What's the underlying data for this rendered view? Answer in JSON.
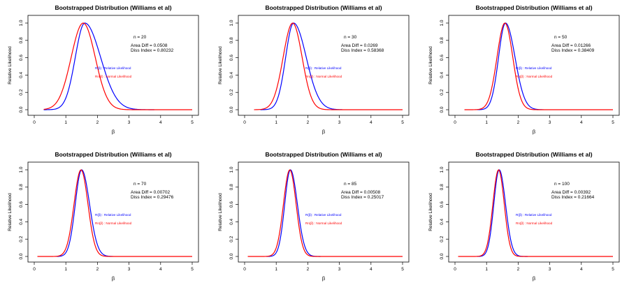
{
  "chart_data": [
    {
      "type": "line",
      "title": "Bootstrapped Distribution (Williams et al)",
      "xlabel": "β",
      "ylabel": "Relative Likelihood",
      "xlim": [
        0,
        5
      ],
      "ylim": [
        0,
        1
      ],
      "xticks": [
        "0",
        "1",
        "2",
        "3",
        "4",
        "5"
      ],
      "yticks": [
        "0.0",
        "0.2",
        "0.4",
        "0.6",
        "0.8",
        "1.0"
      ],
      "grid": false,
      "legend_position": "center-right",
      "n_label": "n = 20",
      "area_diff": "Area Diff =  0.0508",
      "diss_index": "Diss Index =  0.80232",
      "series": [
        {
          "name": "R(β) : Relative Likelihood",
          "color": "#0000ff",
          "x": [
            0.3,
            1.6,
            3.8
          ],
          "mode": 1.6,
          "sd_left": 0.3,
          "sd_right": 0.5
        },
        {
          "name": "Rn(β) : Normal Likelihood",
          "color": "#ff0000",
          "x": [
            0.3,
            1.6,
            5.0
          ],
          "mode": 1.55,
          "sd_left": 0.38,
          "sd_right": 0.38
        }
      ]
    },
    {
      "type": "line",
      "title": "Bootstrapped Distribution (Williams et al)",
      "xlabel": "β",
      "ylabel": "Relative Likelihood",
      "xlim": [
        0,
        5
      ],
      "ylim": [
        0,
        1
      ],
      "xticks": [
        "0",
        "1",
        "2",
        "3",
        "4",
        "5"
      ],
      "yticks": [
        "0.0",
        "0.2",
        "0.4",
        "0.6",
        "0.8",
        "1.0"
      ],
      "grid": false,
      "legend_position": "center-right",
      "n_label": "n = 30",
      "area_diff": "Area Diff =  0.0269",
      "diss_index": "Diss Index =  0.58368",
      "series": [
        {
          "name": "R(β) : Relative Likelihood",
          "color": "#0000ff",
          "x": [
            0.5,
            1.55,
            3.1
          ],
          "mode": 1.55,
          "sd_left": 0.25,
          "sd_right": 0.4
        },
        {
          "name": "Rn(β) : Normal Likelihood",
          "color": "#ff0000",
          "x": [
            0.3,
            1.55,
            5.0
          ],
          "mode": 1.52,
          "sd_left": 0.3,
          "sd_right": 0.3
        }
      ]
    },
    {
      "type": "line",
      "title": "Bootstrapped Distribution (Williams et al)",
      "xlabel": "β",
      "ylabel": "Relative Likelihood",
      "xlim": [
        0,
        5
      ],
      "ylim": [
        0,
        1
      ],
      "xticks": [
        "0",
        "1",
        "2",
        "3",
        "4",
        "5"
      ],
      "yticks": [
        "0.0",
        "0.2",
        "0.4",
        "0.6",
        "0.8",
        "1.0"
      ],
      "grid": false,
      "legend_position": "center-right",
      "n_label": "n = 50",
      "area_diff": "Area Diff =  0.01266",
      "diss_index": "Diss Index =  0.38409",
      "series": [
        {
          "name": "R(β) : Relative Likelihood",
          "color": "#0000ff",
          "x": [
            0.7,
            1.6,
            2.8
          ],
          "mode": 1.6,
          "sd_left": 0.22,
          "sd_right": 0.3
        },
        {
          "name": "Rn(β) : Normal Likelihood",
          "color": "#ff0000",
          "x": [
            0.3,
            1.6,
            5.0
          ],
          "mode": 1.58,
          "sd_left": 0.25,
          "sd_right": 0.25
        }
      ]
    },
    {
      "type": "line",
      "title": "Bootstrapped Distribution (Williams et al)",
      "xlabel": "β",
      "ylabel": "Relative Likelihood",
      "xlim": [
        0,
        5
      ],
      "ylim": [
        0,
        1
      ],
      "xticks": [
        "0",
        "1",
        "2",
        "3",
        "4",
        "5"
      ],
      "yticks": [
        "0.0",
        "0.2",
        "0.4",
        "0.6",
        "0.8",
        "1.0"
      ],
      "grid": false,
      "legend_position": "center-right",
      "n_label": "n = 70",
      "area_diff": "Area Diff =  0.00702",
      "diss_index": "Diss Index =  0.29476",
      "series": [
        {
          "name": "R(β) : Relative Likelihood",
          "color": "#0000ff",
          "x": [
            0.7,
            1.5,
            2.5
          ],
          "mode": 1.5,
          "sd_left": 0.2,
          "sd_right": 0.25
        },
        {
          "name": "Rn(β) : Normal Likelihood",
          "color": "#ff0000",
          "x": [
            0.1,
            1.5,
            5.0
          ],
          "mode": 1.48,
          "sd_left": 0.22,
          "sd_right": 0.22
        }
      ]
    },
    {
      "type": "line",
      "title": "Bootstrapped Distribution (Williams et al)",
      "xlabel": "β",
      "ylabel": "Relative Likelihood",
      "xlim": [
        0,
        5
      ],
      "ylim": [
        0,
        1
      ],
      "xticks": [
        "0",
        "1",
        "2",
        "3",
        "4",
        "5"
      ],
      "yticks": [
        "0.0",
        "0.2",
        "0.4",
        "0.6",
        "0.8",
        "1.0"
      ],
      "grid": false,
      "legend_position": "center-right",
      "n_label": "n = 85",
      "area_diff": "Area Diff =  0.00508",
      "diss_index": "Diss Index =  0.25017",
      "series": [
        {
          "name": "R(β) : Relative Likelihood",
          "color": "#0000ff",
          "x": [
            0.7,
            1.45,
            2.4
          ],
          "mode": 1.45,
          "sd_left": 0.18,
          "sd_right": 0.22
        },
        {
          "name": "Rn(β) : Normal Likelihood",
          "color": "#ff0000",
          "x": [
            0.1,
            1.45,
            5.0
          ],
          "mode": 1.43,
          "sd_left": 0.2,
          "sd_right": 0.2
        }
      ]
    },
    {
      "type": "line",
      "title": "Bootstrapped Distribution (Williams et al)",
      "xlabel": "β",
      "ylabel": "Relative Likelihood",
      "xlim": [
        0,
        5
      ],
      "ylim": [
        0,
        1
      ],
      "xticks": [
        "0",
        "1",
        "2",
        "3",
        "4",
        "5"
      ],
      "yticks": [
        "0.0",
        "0.2",
        "0.4",
        "0.6",
        "0.8",
        "1.0"
      ],
      "grid": false,
      "legend_position": "center-right",
      "n_label": "n = 100",
      "area_diff": "Area Diff =  0.00392",
      "diss_index": "Diss Index =  0.21664",
      "series": [
        {
          "name": "R(β) : Relative Likelihood",
          "color": "#0000ff",
          "x": [
            0.7,
            1.4,
            2.3
          ],
          "mode": 1.4,
          "sd_left": 0.17,
          "sd_right": 0.2
        },
        {
          "name": "Rn(β) : Normal Likelihood",
          "color": "#ff0000",
          "x": [
            0.1,
            1.4,
            5.0
          ],
          "mode": 1.38,
          "sd_left": 0.18,
          "sd_right": 0.18
        }
      ]
    }
  ]
}
